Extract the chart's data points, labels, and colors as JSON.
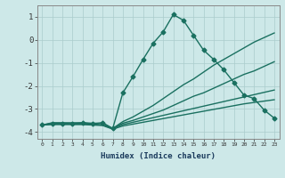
{
  "xlabel": "Humidex (Indice chaleur)",
  "bg_color": "#cde8e8",
  "grid_color": "#aacccc",
  "line_color": "#1a7060",
  "xlim": [
    -0.5,
    23.5
  ],
  "ylim": [
    -4.3,
    1.5
  ],
  "yticks": [
    1,
    0,
    -1,
    -2,
    -3,
    -4
  ],
  "xticks": [
    0,
    1,
    2,
    3,
    4,
    5,
    6,
    7,
    8,
    9,
    10,
    11,
    12,
    13,
    14,
    15,
    16,
    17,
    18,
    19,
    20,
    21,
    22,
    23
  ],
  "lines": [
    {
      "x": [
        0,
        1,
        2,
        3,
        4,
        5,
        6,
        7,
        8,
        9,
        10,
        11,
        12,
        13,
        14,
        15,
        16,
        17,
        18,
        19,
        20,
        21,
        22,
        23
      ],
      "y": [
        -3.7,
        -3.65,
        -3.65,
        -3.65,
        -3.6,
        -3.65,
        -3.6,
        -3.85,
        -2.3,
        -1.6,
        -0.85,
        -0.15,
        0.35,
        1.1,
        0.85,
        0.2,
        -0.45,
        -0.85,
        -1.3,
        -1.85,
        -2.4,
        -2.55,
        -3.05,
        -3.4
      ],
      "marker": "D",
      "ms": 2.5,
      "lw": 1.0
    },
    {
      "x": [
        0,
        1,
        2,
        3,
        4,
        5,
        6,
        7,
        8,
        9,
        10,
        11,
        12,
        13,
        14,
        15,
        16,
        17,
        18,
        19,
        20,
        21,
        22,
        23
      ],
      "y": [
        -3.7,
        -3.6,
        -3.6,
        -3.6,
        -3.6,
        -3.62,
        -3.62,
        -3.85,
        -3.55,
        -3.35,
        -3.1,
        -2.85,
        -2.55,
        -2.25,
        -1.95,
        -1.7,
        -1.4,
        -1.1,
        -0.85,
        -0.6,
        -0.35,
        -0.1,
        0.1,
        0.3
      ],
      "marker": null,
      "lw": 1.0
    },
    {
      "x": [
        0,
        1,
        2,
        3,
        4,
        5,
        6,
        7,
        8,
        9,
        10,
        11,
        12,
        13,
        14,
        15,
        16,
        17,
        18,
        19,
        20,
        21,
        22,
        23
      ],
      "y": [
        -3.7,
        -3.62,
        -3.62,
        -3.65,
        -3.65,
        -3.65,
        -3.7,
        -3.85,
        -3.62,
        -3.5,
        -3.35,
        -3.2,
        -3.05,
        -2.85,
        -2.65,
        -2.45,
        -2.3,
        -2.1,
        -1.9,
        -1.7,
        -1.5,
        -1.35,
        -1.15,
        -0.95
      ],
      "marker": null,
      "lw": 1.0
    },
    {
      "x": [
        0,
        1,
        2,
        3,
        4,
        5,
        6,
        7,
        8,
        9,
        10,
        11,
        12,
        13,
        14,
        15,
        16,
        17,
        18,
        19,
        20,
        21,
        22,
        23
      ],
      "y": [
        -3.7,
        -3.65,
        -3.65,
        -3.65,
        -3.65,
        -3.68,
        -3.7,
        -3.85,
        -3.68,
        -3.58,
        -3.48,
        -3.38,
        -3.28,
        -3.18,
        -3.08,
        -2.98,
        -2.88,
        -2.78,
        -2.68,
        -2.58,
        -2.48,
        -2.38,
        -2.28,
        -2.18
      ],
      "marker": null,
      "lw": 1.0
    },
    {
      "x": [
        0,
        1,
        2,
        3,
        4,
        5,
        6,
        7,
        8,
        9,
        10,
        11,
        12,
        13,
        14,
        15,
        16,
        17,
        18,
        19,
        20,
        21,
        22,
        23
      ],
      "y": [
        -3.7,
        -3.68,
        -3.68,
        -3.68,
        -3.68,
        -3.7,
        -3.72,
        -3.88,
        -3.74,
        -3.66,
        -3.58,
        -3.5,
        -3.42,
        -3.34,
        -3.26,
        -3.18,
        -3.1,
        -3.02,
        -2.94,
        -2.86,
        -2.78,
        -2.72,
        -2.66,
        -2.6
      ],
      "marker": null,
      "lw": 1.0
    }
  ]
}
